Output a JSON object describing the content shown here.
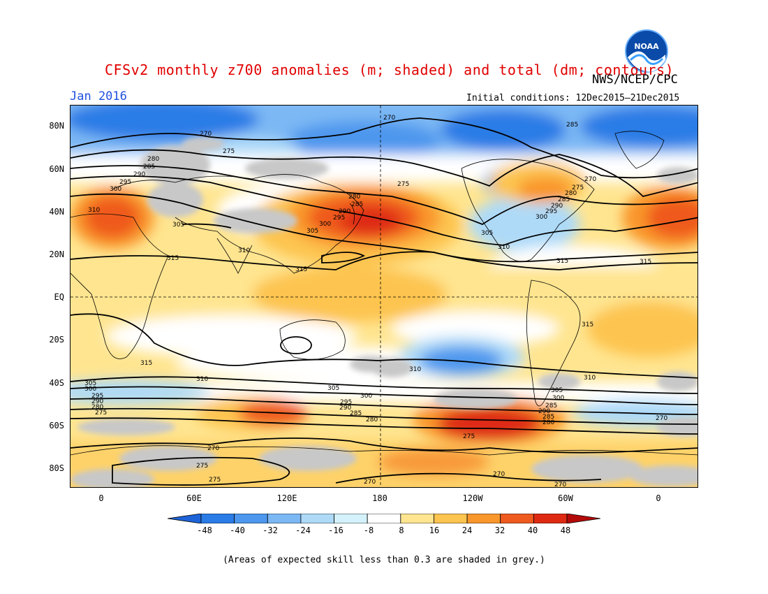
{
  "title": "CFSv2 monthly z700 anomalies (m; shaded) and total (dm; contours)",
  "agency": "NWS/NCEP/CPC",
  "logo_text": "NOAA",
  "month": "Jan 2016",
  "initial_conditions": "Initial conditions: 12Dec2015–21Dec2015",
  "y_axis_labels": [
    "80N",
    "60N",
    "40N",
    "20N",
    "EQ",
    "20S",
    "40S",
    "60S",
    "80S"
  ],
  "x_axis_labels": [
    "0",
    "60E",
    "120E",
    "180",
    "120W",
    "60W",
    "0"
  ],
  "colorbar": {
    "labels": [
      "-48",
      "-40",
      "-32",
      "-24",
      "-16",
      "-8",
      "8",
      "16",
      "24",
      "32",
      "40",
      "48"
    ],
    "colors": [
      "#1e64d8",
      "#2a7ce6",
      "#4d97ee",
      "#7bb8f4",
      "#aedaf8",
      "#d4f2fb",
      "#ffffff",
      "#ffe590",
      "#fdc44f",
      "#f9962c",
      "#ef5a1e",
      "#de2a12",
      "#b40a0a"
    ]
  },
  "contour_labels": [
    "270",
    "275",
    "280",
    "285",
    "290",
    "295",
    "300",
    "305",
    "310",
    "315"
  ],
  "footnote": "(Areas of expected skill less than 0.3 are shaded in grey.)"
}
